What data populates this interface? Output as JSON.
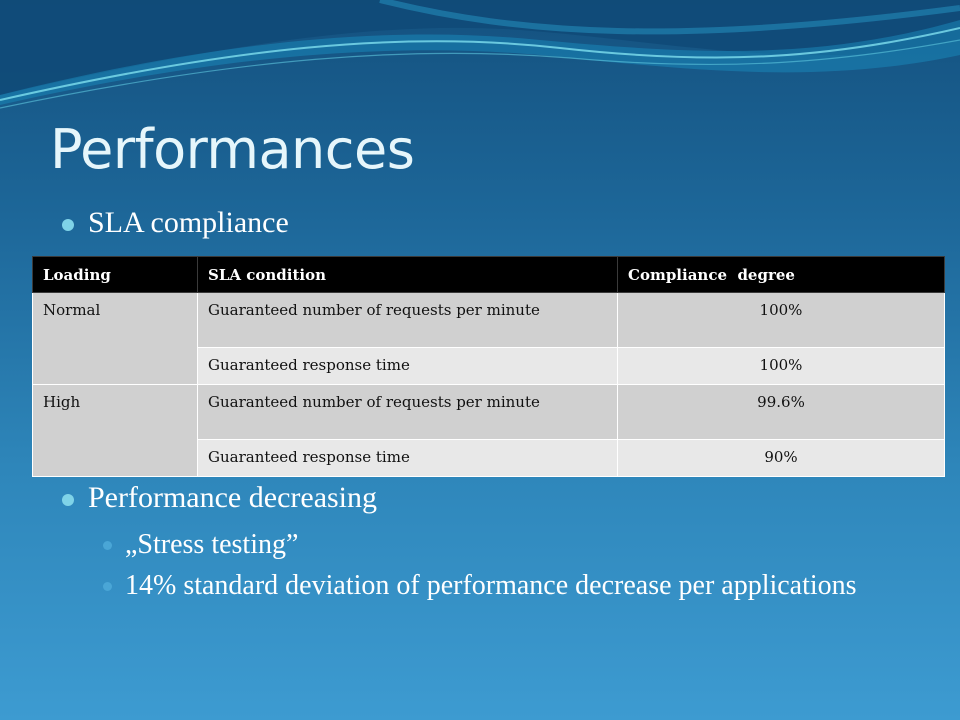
{
  "slide": {
    "title": "Performances",
    "bullets": {
      "sla": "SLA compliance",
      "perf": "Performance decreasing",
      "stress": "„Stress testing”",
      "deviation": "14% standard deviation of performance decrease per applications"
    }
  },
  "table": {
    "headers": [
      "Loading",
      "SLA condition",
      "Compliance  degree"
    ],
    "rows": [
      {
        "loading": "Normal",
        "condition": "Guaranteed number of requests per minute",
        "compliance": "100%"
      },
      {
        "condition": "Guaranteed response time",
        "compliance": "100%"
      },
      {
        "loading": "High",
        "condition": "Guaranteed number of requests per minute",
        "compliance": "99.6%"
      },
      {
        "condition": "Guaranteed response time",
        "compliance": "90%"
      }
    ]
  },
  "colors": {
    "title": "#e6f6fb",
    "bullet_primary": "#7fd3e8",
    "bullet_secondary": "#4aa6d6",
    "header_bg": "#000000"
  }
}
